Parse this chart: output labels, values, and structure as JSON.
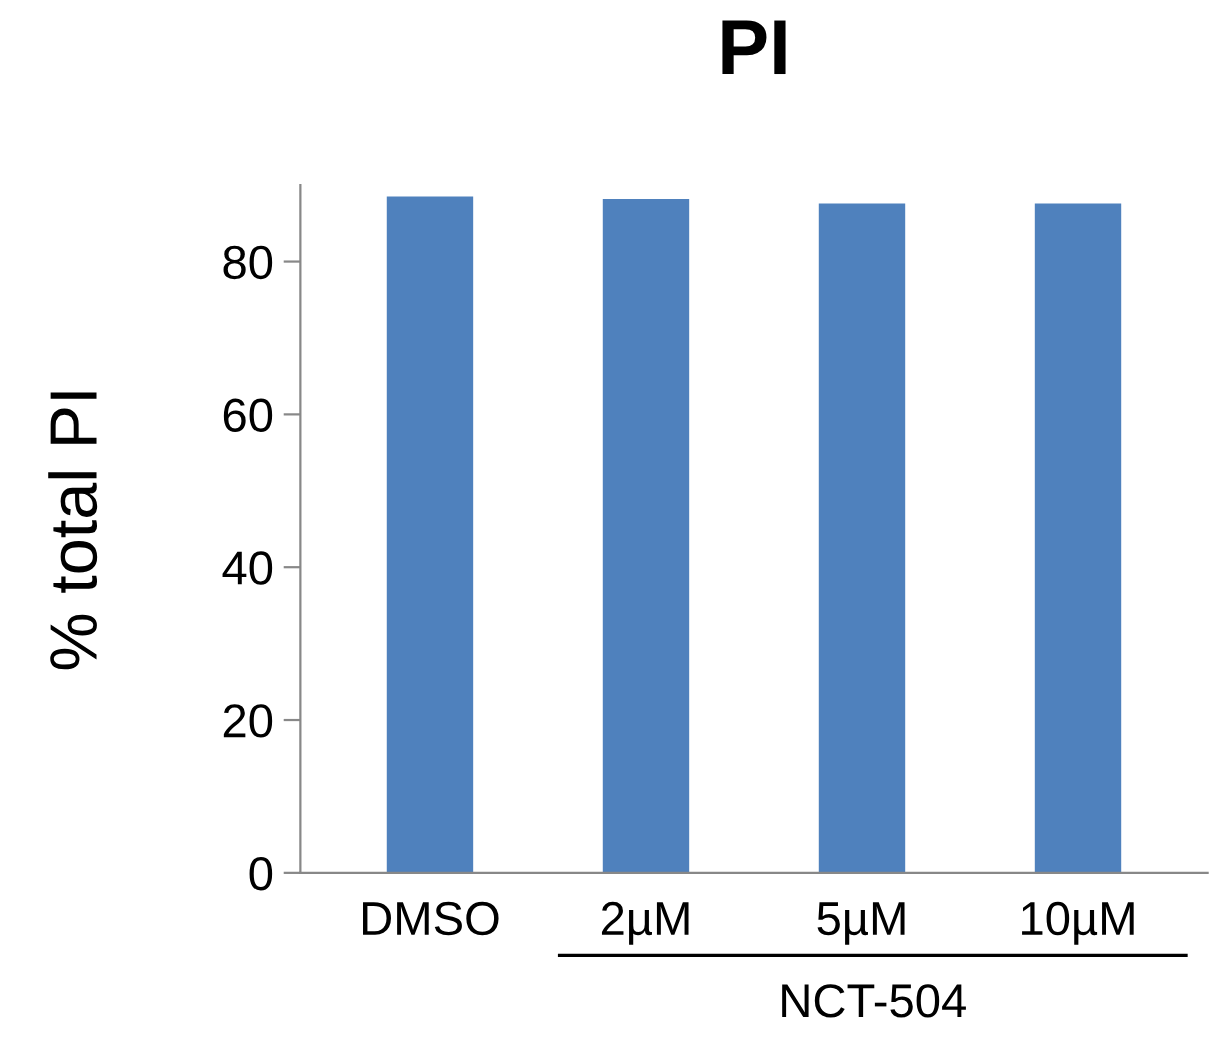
{
  "chart_data": {
    "type": "bar",
    "title": "PI",
    "ylabel": "% total PI",
    "categories": [
      "DMSO",
      "2µM",
      "5µM",
      "10µM"
    ],
    "values": [
      88.5,
      88.2,
      87.6,
      87.6
    ],
    "color": "#4f81bd",
    "ylim": [
      0,
      90
    ],
    "yticks": [
      0,
      20,
      40,
      60,
      80
    ],
    "grid": false,
    "legend": false,
    "annotations": [
      "NCT-504"
    ]
  }
}
